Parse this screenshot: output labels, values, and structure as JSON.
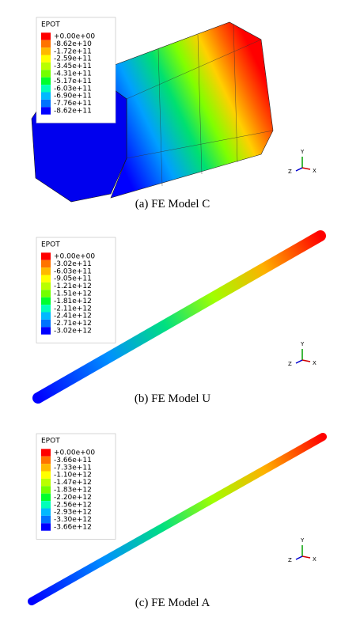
{
  "panels": [
    {
      "legend": {
        "title": "EPOT",
        "labels": [
          "+0.00e+00",
          "-8.62e+10",
          "-1.72e+11",
          "-2.59e+11",
          "-3.45e+11",
          "-4.31e+11",
          "-5.17e+11",
          "-6.03e+11",
          "-6.90e+11",
          "-7.76e+11",
          "-8.62e+11"
        ]
      },
      "triad": {
        "y": "Y",
        "z": "Z",
        "x": "X"
      },
      "caption": "(a) FE Model C"
    },
    {
      "legend": {
        "title": "EPOT",
        "labels": [
          "+0.00e+00",
          "-3.02e+11",
          "-6.03e+11",
          "-9.05e+11",
          "-1.21e+12",
          "-1.51e+12",
          "-1.81e+12",
          "-2.11e+12",
          "-2.41e+12",
          "-2.71e+12",
          "-3.02e+12"
        ]
      },
      "triad": {
        "y": "Y",
        "z": "Z",
        "x": "X"
      },
      "caption": "(b) FE Model U"
    },
    {
      "legend": {
        "title": "EPOT",
        "labels": [
          "+0.00e+00",
          "-3.66e+11",
          "-7.33e+11",
          "-1.10e+12",
          "-1.47e+12",
          "-1.83e+12",
          "-2.20e+12",
          "-2.56e+12",
          "-2.93e+12",
          "-3.30e+12",
          "-3.66e+12"
        ]
      },
      "triad": {
        "y": "Y",
        "z": "Z",
        "x": "X"
      },
      "caption": "(c) FE Model A"
    }
  ]
}
